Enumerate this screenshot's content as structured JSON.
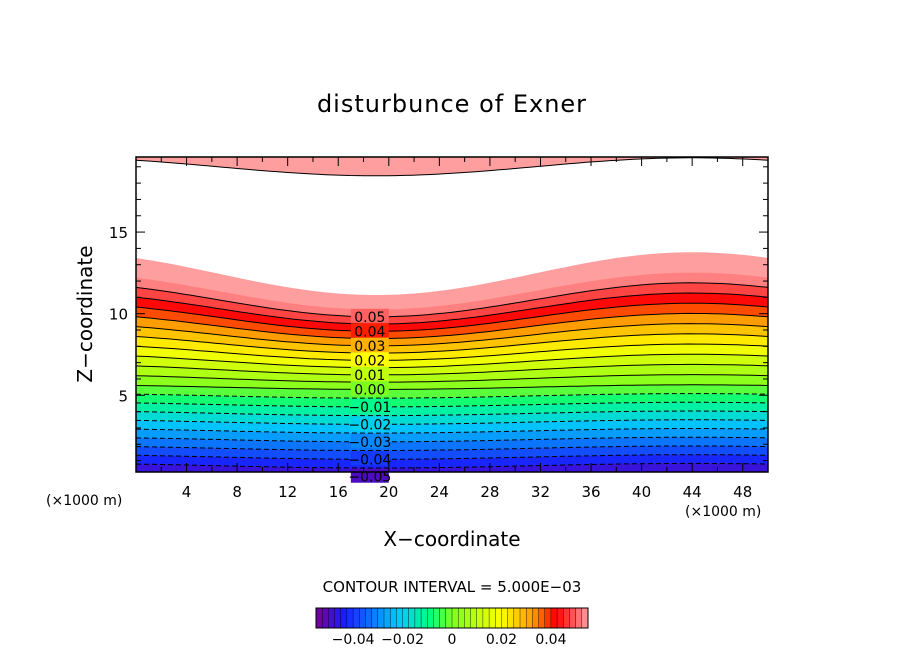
{
  "chart_data": {
    "type": "contour",
    "title": "disturbunce of Exner",
    "xlabel": "X−coordinate",
    "ylabel": "Z−coordinate",
    "x_unit_label": "(×1000 m)",
    "x_unit_label_right": "(×1000 m)",
    "xlim": [
      0,
      50
    ],
    "ylim": [
      0.3,
      19.6
    ],
    "x_ticks": [
      4,
      8,
      12,
      16,
      20,
      24,
      28,
      32,
      36,
      40,
      44,
      48
    ],
    "y_ticks": [
      5,
      10,
      15
    ],
    "contour_interval_text": "CONTOUR INTERVAL = 5.000E−03",
    "contour_interval": 0.005,
    "contour_line_labels": [
      "0.05",
      "0.04",
      "0.03",
      "0.02",
      "0.01",
      "0.00",
      "−0.01",
      "−0.02",
      "−0.03",
      "−0.04",
      "−0.05"
    ],
    "contour_line_label_values": [
      0.05,
      0.04,
      0.03,
      0.02,
      0.01,
      0.0,
      -0.01,
      -0.02,
      -0.03,
      -0.04,
      -0.05
    ],
    "value_range": [
      -0.055,
      0.055
    ],
    "top_band": {
      "value": 0.05,
      "description": "positive cap at top of domain"
    },
    "colorbar": {
      "tick_labels": [
        "−0.04",
        "−0.02",
        "0",
        "0.02",
        "0.04"
      ],
      "tick_values": [
        -0.04,
        -0.02,
        0,
        0.02,
        0.04
      ],
      "range": [
        -0.055,
        0.055
      ]
    },
    "colors": {
      "neg_low": "#7a0090",
      "neg": "#1a1aff",
      "zero": "#7dff20",
      "pos_mid": "#ffff00",
      "pos": "#ff0000",
      "pos_high": "#ff9e9e"
    }
  }
}
